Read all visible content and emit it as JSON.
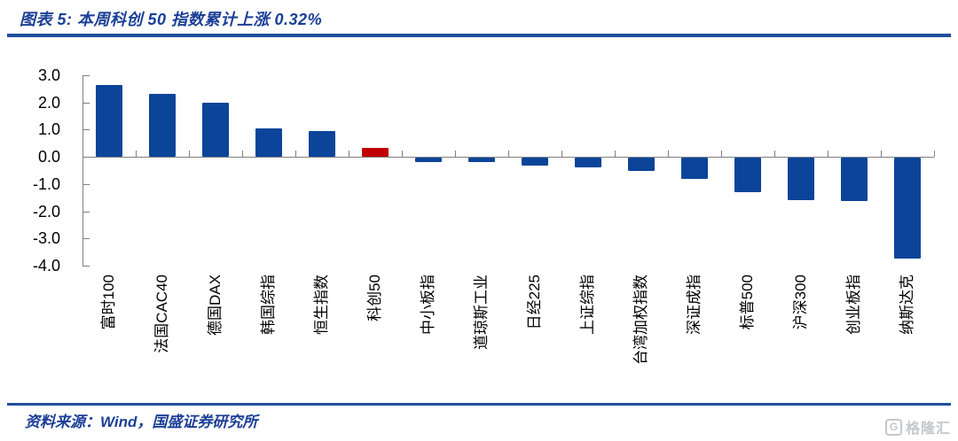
{
  "header": {
    "title": "图表 5:  本周科创 50 指数累计上涨 0.32%"
  },
  "footer": {
    "source_label": "资料来源：Wind，国盛证券研究所",
    "watermark_text": "格隆汇",
    "watermark_icon_letter": "G"
  },
  "colors": {
    "title_blue": "#1b3f96",
    "divider_blue": "#1f4e9e",
    "bar_blue": "#0b4499",
    "bar_red": "#c00000",
    "axis_gray": "#7f7f7f",
    "tick_text": "#000000",
    "watermark_gray": "#c6c7cb"
  },
  "chart_data": {
    "type": "bar",
    "title": "图表 5:  本周科创 50 指数累计上涨 0.32%",
    "categories": [
      "富时100",
      "法国CAC40",
      "德国DAX",
      "韩国综指",
      "恒生指数",
      "科创50",
      "中小板指",
      "道琼斯工业",
      "日经225",
      "上证综指",
      "台湾加权指数",
      "深证成指",
      "标普500",
      "沪深300",
      "创业板指",
      "纳斯达克"
    ],
    "values": [
      2.65,
      2.3,
      2.0,
      1.05,
      0.93,
      0.32,
      -0.15,
      -0.16,
      -0.29,
      -0.37,
      -0.48,
      -0.78,
      -1.28,
      -1.55,
      -1.61,
      -3.72
    ],
    "highlight_category": "科创50",
    "highlight_index": 5,
    "unit": "%",
    "xlabel": "",
    "ylabel": "",
    "ylim": [
      -4.0,
      3.0
    ],
    "yticks": [
      3.0,
      2.0,
      1.0,
      0.0,
      -1.0,
      -2.0,
      -3.0,
      -4.0
    ],
    "ytick_labels": [
      "3.0",
      "2.0",
      "1.0",
      "0.0",
      "-1.0",
      "-2.0",
      "-3.0",
      "-4.0"
    ],
    "grid": false,
    "legend": "none",
    "bar_colors": {
      "default": "#0b4499",
      "highlight": "#c00000"
    }
  }
}
